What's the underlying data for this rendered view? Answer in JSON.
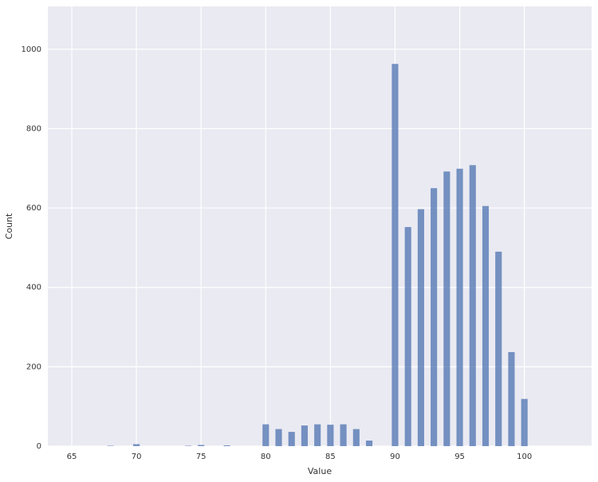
{
  "chart_data": {
    "type": "histogram",
    "x_label": "Value",
    "y_label": "Count",
    "color": "#4c72b0",
    "grid": true,
    "bins": [
      67.75,
      68.25,
      68.75,
      69.25,
      69.75,
      70.25,
      70.75,
      71.25,
      71.75,
      72.25,
      72.75,
      73.25,
      73.75,
      74.25,
      74.75,
      75.25,
      75.75,
      76.25,
      76.75,
      77.25,
      77.75,
      78.25,
      78.75,
      79.25,
      79.75,
      80.25,
      80.75,
      81.25,
      81.75,
      82.25,
      82.75,
      83.25,
      83.75,
      84.25,
      84.75,
      85.25,
      85.75,
      86.25,
      86.75,
      87.25,
      87.75,
      88.25,
      88.75,
      89.25,
      89.75,
      90.25,
      90.75,
      91.25,
      91.75,
      92.25,
      92.75,
      93.25,
      93.75,
      94.25,
      94.75,
      95.25,
      95.75,
      96.25,
      96.75,
      97.25,
      97.75,
      98.25,
      98.75,
      99.25,
      99.75,
      100.25
    ],
    "values": [
      1,
      0,
      0,
      0,
      5,
      0,
      0,
      0,
      0,
      0,
      0,
      0,
      1,
      0,
      3,
      0,
      0,
      0,
      2,
      0,
      0,
      0,
      0,
      0,
      55,
      0,
      43,
      0,
      36,
      0,
      52,
      0,
      55,
      0,
      54,
      0,
      55,
      0,
      43,
      0,
      14,
      0,
      0,
      0,
      963,
      0,
      552,
      0,
      597,
      0,
      650,
      0,
      692,
      0,
      699,
      0,
      708,
      0,
      605,
      0,
      490,
      0,
      237,
      0,
      119
    ],
    "xlim": [
      63.15,
      105.2
    ],
    "ylim": [
      0,
      1108
    ],
    "xticks": [
      65,
      70,
      75,
      80,
      85,
      90,
      95,
      100
    ],
    "yticks": [
      0,
      200,
      400,
      600,
      800,
      1000
    ]
  }
}
